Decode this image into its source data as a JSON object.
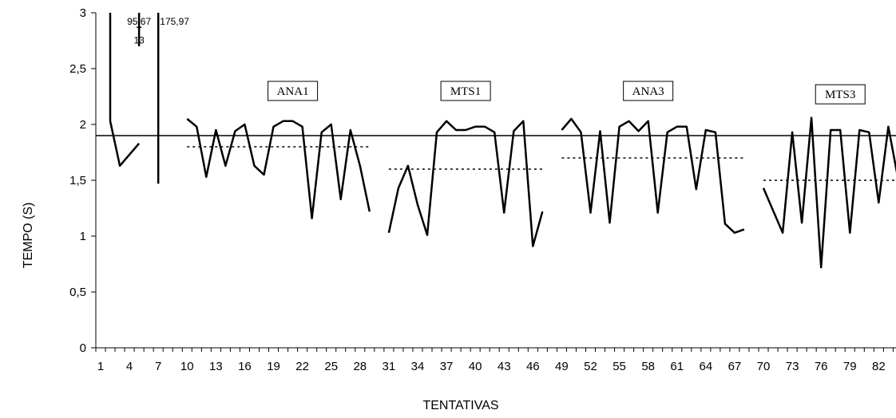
{
  "chart_data": {
    "type": "line",
    "xlabel": "TENTATIVAS",
    "ylabel": "TEMPO (S)",
    "xlim": [
      1,
      84
    ],
    "ylim": [
      0,
      3
    ],
    "y_ticks": [
      "0",
      "0,5",
      "1",
      "1,5",
      "2",
      "2,5",
      "3"
    ],
    "x_ticks": [
      "1",
      "4",
      "7",
      "10",
      "13",
      "16",
      "19",
      "22",
      "25",
      "28",
      "31",
      "34",
      "37",
      "40",
      "43",
      "46",
      "49",
      "52",
      "55",
      "58",
      "61",
      "64",
      "67",
      "70",
      "73",
      "76",
      "79",
      "82"
    ],
    "reference_line": 1.9,
    "series": [
      {
        "x": [
          2,
          3,
          4,
          5
        ],
        "y": [
          2.03,
          1.63,
          1.73,
          1.83
        ]
      },
      {
        "x": [
          5
        ],
        "y": [
          2.7
        ],
        "to": 13
      },
      {
        "x": [
          7
        ],
        "y": [
          1.47
        ],
        "to": 175.97
      },
      {
        "x": [
          10,
          11,
          12,
          13,
          14,
          15,
          16,
          17,
          18,
          19,
          20,
          21,
          22,
          23,
          24,
          25,
          26,
          27,
          28,
          29
        ],
        "y": [
          2.05,
          1.98,
          1.53,
          1.95,
          1.63,
          1.94,
          2.0,
          1.63,
          1.55,
          1.98,
          2.03,
          2.03,
          1.98,
          1.16,
          1.93,
          2.0,
          1.33,
          1.95,
          1.63,
          1.22
        ]
      },
      {
        "x": [
          31,
          32,
          33,
          34,
          35,
          36,
          37,
          38,
          39,
          40,
          41,
          42,
          43,
          44,
          45,
          46,
          47
        ],
        "y": [
          1.03,
          1.43,
          1.63,
          1.28,
          1.01,
          1.93,
          2.03,
          1.95,
          1.95,
          1.98,
          1.98,
          1.93,
          1.21,
          1.94,
          2.03,
          0.91,
          1.22
        ]
      },
      {
        "x": [
          49,
          50,
          51,
          52,
          53,
          54,
          55,
          56,
          57,
          58,
          59,
          60,
          61,
          62,
          63,
          64,
          65,
          66,
          67,
          68
        ],
        "y": [
          1.95,
          2.05,
          1.93,
          1.21,
          1.94,
          1.12,
          1.98,
          2.03,
          1.94,
          2.03,
          1.21,
          1.93,
          1.98,
          1.98,
          1.42,
          1.95,
          1.93,
          1.11,
          1.03,
          1.06
        ]
      },
      {
        "x": [
          70,
          71,
          72,
          73,
          74,
          75,
          76,
          77,
          78,
          79,
          80,
          81,
          82,
          83,
          84
        ],
        "y": [
          1.43,
          1.23,
          1.03,
          1.93,
          1.12,
          2.06,
          0.72,
          1.95,
          1.95,
          1.03,
          1.95,
          1.93,
          1.3,
          1.98,
          1.52
        ]
      }
    ],
    "phase_means": [
      {
        "x": [
          10,
          29
        ],
        "y": 1.8
      },
      {
        "x": [
          31,
          47
        ],
        "y": 1.6
      },
      {
        "x": [
          49,
          68
        ],
        "y": 1.7
      },
      {
        "x": [
          70,
          84
        ],
        "y": 1.5
      }
    ],
    "phase_labels": [
      {
        "text": "ANA1",
        "x": 21,
        "y": 2.3
      },
      {
        "text": "MTS1",
        "x": 39,
        "y": 2.3
      },
      {
        "text": "ANA3",
        "x": 58,
        "y": 2.3
      },
      {
        "text": "MTS3",
        "x": 78,
        "y": 2.27
      }
    ],
    "annotations": [
      {
        "text": "95,67",
        "x": 5,
        "y": 2.93
      },
      {
        "text": "13",
        "x": 5,
        "y": 2.76
      },
      {
        "text": "175,97",
        "x": 8.7,
        "y": 2.93
      }
    ]
  }
}
